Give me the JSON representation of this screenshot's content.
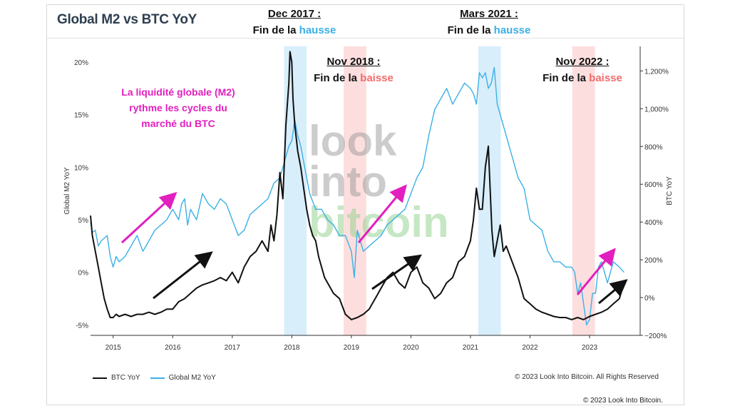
{
  "header": {
    "title": "Global M2 vs BTC YoY"
  },
  "annotations": {
    "dec2017": {
      "period": "Dec 2017 :",
      "prefix": "Fin de la ",
      "word": "hausse"
    },
    "mar2021": {
      "period": "Mars 2021 :",
      "prefix": "Fin de la ",
      "word": "hausse"
    },
    "nov2018": {
      "period": "Nov 2018 :",
      "prefix": "Fin de la ",
      "word": "baisse"
    },
    "nov2022": {
      "period": "Nov 2022 :",
      "prefix": "Fin de la ",
      "word": "baisse"
    }
  },
  "message": {
    "line1": "La liquidité globale (M2)",
    "line2": "rythme les cycles du",
    "line3": "marché du BTC"
  },
  "watermark": {
    "line1": "look",
    "line2": "into",
    "line3": "bitcoin"
  },
  "footer": {
    "copyright_chart": "© 2023 Look Into Bitcoin. All Rights Reserved",
    "copyright_page": "© 2023 Look Into Bitcoin."
  },
  "colors": {
    "btc": "#111111",
    "m2": "#3bb0e6",
    "hausse_band": "#d9eefb",
    "baisse_band": "#fddede",
    "arrow_pink": "#e21fbf",
    "arrow_black": "#111111"
  },
  "chart_data": {
    "type": "line",
    "title": "Global M2 vs BTC YoY",
    "ylabel": "Global M2 YoY",
    "ylabel_right": "BTC YoY",
    "xlim": [
      2014.62,
      2023.85
    ],
    "ylim_left": [
      -6,
      21.5
    ],
    "ylim_right": [
      -200,
      1330
    ],
    "x_ticks": [
      "2015",
      "2016",
      "2017",
      "2018",
      "2019",
      "2020",
      "2021",
      "2022",
      "2023"
    ],
    "y_ticks_left": [
      "20%",
      "15%",
      "10%",
      "5%",
      "0%",
      "-5%"
    ],
    "y_ticks_left_values": [
      20,
      15,
      10,
      5,
      0,
      -5
    ],
    "y_ticks_right": [
      "1,200%",
      "1,000%",
      "800%",
      "600%",
      "400%",
      "200%",
      "0%",
      "−200%"
    ],
    "y_ticks_right_values": [
      1200,
      1000,
      800,
      600,
      400,
      200,
      0,
      -200
    ],
    "legend": [
      "BTC YoY",
      "Global M2 YoY"
    ],
    "legend_position": "bottom-left",
    "bands": [
      {
        "kind": "hausse",
        "x0": 2017.87,
        "x1": 2018.25
      },
      {
        "kind": "baisse",
        "x0": 2018.87,
        "x1": 2019.25
      },
      {
        "kind": "hausse",
        "x0": 2021.13,
        "x1": 2021.51
      },
      {
        "kind": "baisse",
        "x0": 2022.71,
        "x1": 2023.09
      }
    ],
    "series": [
      {
        "name": "BTC YoY",
        "axis": "left",
        "x": [
          2014.62,
          2014.65,
          2014.7,
          2014.75,
          2014.8,
          2014.85,
          2014.9,
          2014.95,
          2015.0,
          2015.05,
          2015.1,
          2015.2,
          2015.3,
          2015.4,
          2015.5,
          2015.6,
          2015.7,
          2015.8,
          2015.9,
          2016.0,
          2016.1,
          2016.2,
          2016.3,
          2016.4,
          2016.5,
          2016.6,
          2016.7,
          2016.8,
          2016.9,
          2017.0,
          2017.1,
          2017.2,
          2017.3,
          2017.4,
          2017.5,
          2017.6,
          2017.65,
          2017.7,
          2017.75,
          2017.8,
          2017.85,
          2017.9,
          2017.95,
          2017.97,
          2018.0,
          2018.02,
          2018.05,
          2018.1,
          2018.15,
          2018.2,
          2018.25,
          2018.3,
          2018.35,
          2018.4,
          2018.45,
          2018.5,
          2018.55,
          2018.6,
          2018.7,
          2018.8,
          2018.9,
          2019.0,
          2019.1,
          2019.2,
          2019.3,
          2019.35,
          2019.4,
          2019.5,
          2019.6,
          2019.7,
          2019.8,
          2019.9,
          2020.0,
          2020.1,
          2020.2,
          2020.3,
          2020.4,
          2020.5,
          2020.6,
          2020.7,
          2020.8,
          2020.9,
          2021.0,
          2021.05,
          2021.1,
          2021.15,
          2021.2,
          2021.25,
          2021.3,
          2021.33,
          2021.36,
          2021.4,
          2021.45,
          2021.5,
          2021.55,
          2021.6,
          2021.7,
          2021.8,
          2021.9,
          2022.0,
          2022.1,
          2022.2,
          2022.3,
          2022.4,
          2022.5,
          2022.6,
          2022.7,
          2022.8,
          2022.9,
          2023.0,
          2023.1,
          2023.2,
          2023.3,
          2023.4,
          2023.5,
          2023.58
        ],
        "y": [
          5.4,
          3.5,
          2.0,
          0.5,
          -1.0,
          -2.5,
          -3.5,
          -4.3,
          -4.3,
          -4.0,
          -4.2,
          -4.0,
          -4.2,
          -4.0,
          -4.0,
          -3.8,
          -4.0,
          -3.8,
          -3.5,
          -3.5,
          -2.8,
          -2.5,
          -2.0,
          -1.5,
          -1.2,
          -1.0,
          -0.8,
          -0.5,
          -0.8,
          0.0,
          -1.0,
          0.5,
          1.5,
          2.0,
          3.0,
          2.0,
          4.5,
          3.0,
          5.5,
          9.5,
          7.0,
          14.0,
          18.0,
          21.0,
          20.0,
          16.5,
          14.0,
          11.5,
          10.0,
          8.0,
          6.0,
          4.5,
          3.5,
          3.0,
          1.5,
          0.5,
          -0.5,
          -1.0,
          -2.0,
          -2.5,
          -4.0,
          -4.5,
          -4.3,
          -4.0,
          -3.5,
          -3.0,
          -2.5,
          -1.5,
          -0.5,
          0.0,
          -1.0,
          -1.5,
          0.0,
          0.5,
          -1.0,
          -1.5,
          -2.5,
          -2.0,
          -1.0,
          -0.5,
          1.0,
          1.5,
          3.0,
          5.0,
          8.0,
          6.0,
          6.0,
          10.0,
          12.0,
          8.0,
          4.0,
          1.5,
          3.0,
          4.5,
          2.0,
          2.5,
          1.0,
          -0.5,
          -2.5,
          -3.0,
          -3.5,
          -3.8,
          -4.0,
          -4.2,
          -4.3,
          -4.3,
          -4.5,
          -4.3,
          -4.5,
          -4.2,
          -4.0,
          -3.8,
          -3.5,
          -3.0,
          -2.5,
          -1.0
        ]
      },
      {
        "name": "Global M2 YoY",
        "axis": "left",
        "x": [
          2014.62,
          2014.65,
          2014.7,
          2014.75,
          2014.8,
          2014.9,
          2014.95,
          2015.0,
          2015.05,
          2015.1,
          2015.2,
          2015.3,
          2015.4,
          2015.5,
          2015.6,
          2015.7,
          2015.8,
          2015.9,
          2016.0,
          2016.05,
          2016.1,
          2016.15,
          2016.2,
          2016.25,
          2016.3,
          2016.4,
          2016.5,
          2016.6,
          2016.7,
          2016.8,
          2016.9,
          2017.0,
          2017.1,
          2017.2,
          2017.3,
          2017.4,
          2017.5,
          2017.6,
          2017.7,
          2017.8,
          2017.85,
          2017.9,
          2017.95,
          2018.0,
          2018.05,
          2018.1,
          2018.15,
          2018.2,
          2018.25,
          2018.3,
          2018.4,
          2018.5,
          2018.6,
          2018.7,
          2018.8,
          2018.9,
          2019.0,
          2019.05,
          2019.1,
          2019.15,
          2019.2,
          2019.3,
          2019.4,
          2019.5,
          2019.6,
          2019.7,
          2019.8,
          2019.9,
          2020.0,
          2020.1,
          2020.2,
          2020.3,
          2020.4,
          2020.5,
          2020.6,
          2020.7,
          2020.8,
          2020.9,
          2021.0,
          2021.05,
          2021.1,
          2021.15,
          2021.2,
          2021.25,
          2021.3,
          2021.35,
          2021.4,
          2021.45,
          2021.5,
          2021.55,
          2021.6,
          2021.7,
          2021.8,
          2021.9,
          2022.0,
          2022.1,
          2022.2,
          2022.3,
          2022.4,
          2022.5,
          2022.6,
          2022.7,
          2022.75,
          2022.8,
          2022.85,
          2022.9,
          2022.95,
          2023.0,
          2023.05,
          2023.1,
          2023.15,
          2023.2,
          2023.3,
          2023.4,
          2023.5,
          2023.58
        ],
        "y": [
          4.8,
          3.8,
          4.0,
          2.5,
          3.0,
          3.5,
          1.5,
          0.5,
          1.5,
          1.0,
          1.5,
          2.5,
          3.5,
          2.0,
          3.0,
          4.0,
          4.5,
          5.0,
          6.0,
          5.5,
          5.0,
          6.5,
          7.0,
          4.5,
          6.0,
          5.0,
          7.5,
          6.5,
          6.0,
          7.0,
          6.5,
          5.0,
          3.5,
          4.0,
          5.5,
          6.0,
          6.5,
          7.0,
          8.5,
          9.0,
          10.0,
          11.0,
          12.0,
          12.5,
          14.5,
          13.0,
          12.0,
          10.5,
          9.0,
          7.5,
          6.0,
          6.0,
          5.0,
          4.5,
          3.5,
          3.5,
          2.0,
          -0.5,
          4.0,
          3.0,
          2.0,
          2.5,
          3.0,
          3.5,
          4.5,
          5.0,
          5.5,
          6.0,
          7.5,
          9.0,
          10.0,
          13.0,
          15.5,
          16.5,
          17.5,
          16.0,
          17.0,
          18.0,
          17.5,
          17.0,
          16.0,
          19.0,
          18.5,
          19.0,
          17.5,
          18.0,
          19.5,
          16.0,
          15.0,
          14.0,
          13.0,
          11.0,
          9.0,
          8.0,
          5.0,
          4.5,
          4.0,
          2.0,
          1.0,
          1.0,
          0.5,
          0.5,
          0.0,
          -2.0,
          -1.0,
          -3.0,
          -5.0,
          -4.5,
          -2.0,
          -2.0,
          0.5,
          1.0,
          -1.0,
          1.0,
          0.5,
          0.0
        ]
      }
    ]
  }
}
